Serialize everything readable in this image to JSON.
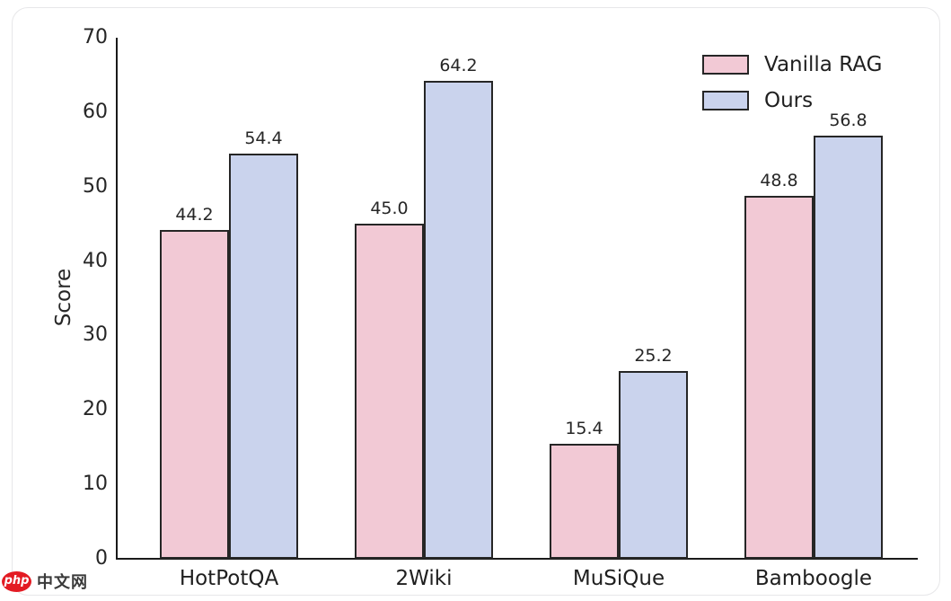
{
  "chart_data": {
    "type": "bar",
    "title": "",
    "xlabel": "",
    "ylabel": "Score",
    "ylim": [
      0,
      70
    ],
    "yticks": [
      0,
      10,
      20,
      30,
      40,
      50,
      60,
      70
    ],
    "categories": [
      "HotPotQA",
      "2Wiki",
      "MuSiQue",
      "Bamboogle"
    ],
    "series": [
      {
        "name": "Vanilla RAG",
        "color": "#f2c9d5",
        "values": [
          44.2,
          45.0,
          15.4,
          48.8
        ]
      },
      {
        "name": "Ours",
        "color": "#cad3ed",
        "values": [
          54.4,
          64.2,
          25.2,
          56.8
        ]
      }
    ],
    "bar_edge_color": "#262626",
    "value_labels": true,
    "value_label_decimals": 1,
    "grid": false,
    "legend_position": "upper right"
  },
  "watermark": {
    "logo_text": "php",
    "site_text": "中文网"
  }
}
